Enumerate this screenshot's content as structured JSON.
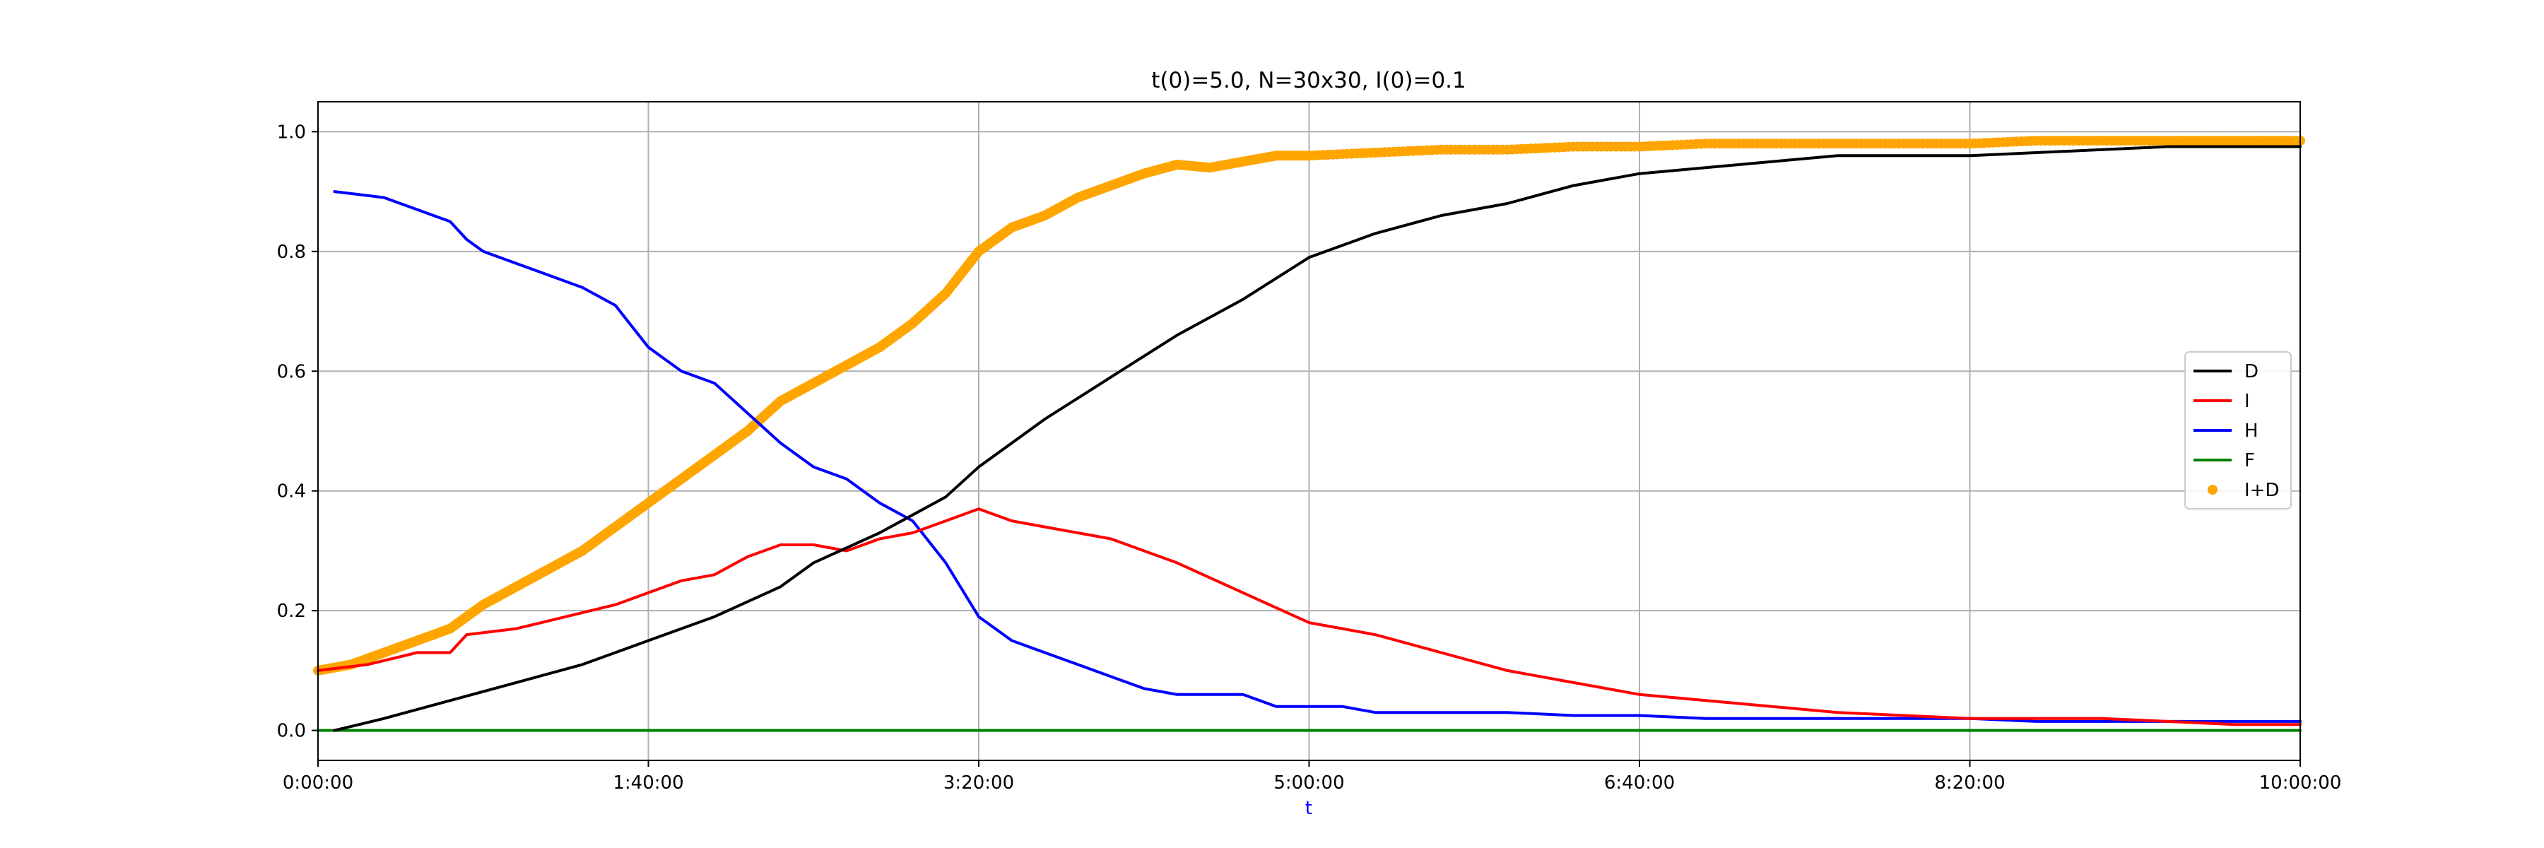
{
  "chart_data": {
    "type": "line",
    "title": "t(0)=5.0, N=30x30, I(0)=0.1",
    "xlabel": "t",
    "xlabel_color": "#0000ff",
    "ylabel": "",
    "x_unit": "seconds",
    "xlim": [
      0,
      36000
    ],
    "ylim": [
      -0.05,
      1.05
    ],
    "grid": true,
    "legend_position": "center-right",
    "x_ticks": [
      {
        "value": 0,
        "label": "0:00:00"
      },
      {
        "value": 6000,
        "label": "1:40:00"
      },
      {
        "value": 12000,
        "label": "3:20:00"
      },
      {
        "value": 18000,
        "label": "5:00:00"
      },
      {
        "value": 24000,
        "label": "6:40:00"
      },
      {
        "value": 30000,
        "label": "8:20:00"
      },
      {
        "value": 36000,
        "label": "10:00:00"
      }
    ],
    "y_ticks": [
      {
        "value": 0.0,
        "label": "0.0"
      },
      {
        "value": 0.2,
        "label": "0.2"
      },
      {
        "value": 0.4,
        "label": "0.4"
      },
      {
        "value": 0.6,
        "label": "0.6"
      },
      {
        "value": 0.8,
        "label": "0.8"
      },
      {
        "value": 1.0,
        "label": "1.0"
      }
    ],
    "series": [
      {
        "name": "D",
        "color": "#000000",
        "style": "line",
        "points": [
          [
            300,
            0.0
          ],
          [
            1200,
            0.02
          ],
          [
            2400,
            0.05
          ],
          [
            3600,
            0.08
          ],
          [
            4800,
            0.11
          ],
          [
            6000,
            0.15
          ],
          [
            7200,
            0.19
          ],
          [
            8400,
            0.24
          ],
          [
            9000,
            0.28
          ],
          [
            10200,
            0.33
          ],
          [
            11400,
            0.39
          ],
          [
            12000,
            0.44
          ],
          [
            13200,
            0.52
          ],
          [
            14400,
            0.59
          ],
          [
            15600,
            0.66
          ],
          [
            16800,
            0.72
          ],
          [
            18000,
            0.79
          ],
          [
            19200,
            0.83
          ],
          [
            20400,
            0.86
          ],
          [
            21600,
            0.88
          ],
          [
            22800,
            0.91
          ],
          [
            24000,
            0.93
          ],
          [
            25200,
            0.94
          ],
          [
            26400,
            0.95
          ],
          [
            27600,
            0.96
          ],
          [
            28800,
            0.96
          ],
          [
            30000,
            0.96
          ],
          [
            31200,
            0.965
          ],
          [
            32400,
            0.97
          ],
          [
            33600,
            0.975
          ],
          [
            34800,
            0.975
          ],
          [
            36000,
            0.975
          ]
        ]
      },
      {
        "name": "I",
        "color": "#ff0000",
        "style": "line",
        "points": [
          [
            0,
            0.1
          ],
          [
            900,
            0.11
          ],
          [
            1800,
            0.13
          ],
          [
            2400,
            0.13
          ],
          [
            2700,
            0.16
          ],
          [
            3600,
            0.17
          ],
          [
            4500,
            0.19
          ],
          [
            5400,
            0.21
          ],
          [
            6000,
            0.23
          ],
          [
            6600,
            0.25
          ],
          [
            7200,
            0.26
          ],
          [
            7800,
            0.29
          ],
          [
            8400,
            0.31
          ],
          [
            9000,
            0.31
          ],
          [
            9600,
            0.3
          ],
          [
            10200,
            0.32
          ],
          [
            10800,
            0.33
          ],
          [
            11400,
            0.35
          ],
          [
            12000,
            0.37
          ],
          [
            12600,
            0.35
          ],
          [
            13200,
            0.34
          ],
          [
            14400,
            0.32
          ],
          [
            15600,
            0.28
          ],
          [
            16800,
            0.23
          ],
          [
            18000,
            0.18
          ],
          [
            19200,
            0.16
          ],
          [
            20400,
            0.13
          ],
          [
            21600,
            0.1
          ],
          [
            22800,
            0.08
          ],
          [
            24000,
            0.06
          ],
          [
            25200,
            0.05
          ],
          [
            26400,
            0.04
          ],
          [
            27600,
            0.03
          ],
          [
            28800,
            0.025
          ],
          [
            30000,
            0.02
          ],
          [
            31200,
            0.02
          ],
          [
            32400,
            0.02
          ],
          [
            33600,
            0.015
          ],
          [
            34800,
            0.01
          ],
          [
            36000,
            0.01
          ]
        ]
      },
      {
        "name": "H",
        "color": "#0000ff",
        "style": "line",
        "points": [
          [
            300,
            0.9
          ],
          [
            1200,
            0.89
          ],
          [
            2100,
            0.86
          ],
          [
            2400,
            0.85
          ],
          [
            2700,
            0.82
          ],
          [
            3000,
            0.8
          ],
          [
            3600,
            0.78
          ],
          [
            4200,
            0.76
          ],
          [
            4800,
            0.74
          ],
          [
            5400,
            0.71
          ],
          [
            6000,
            0.64
          ],
          [
            6600,
            0.6
          ],
          [
            7200,
            0.58
          ],
          [
            7800,
            0.53
          ],
          [
            8400,
            0.48
          ],
          [
            9000,
            0.44
          ],
          [
            9600,
            0.42
          ],
          [
            10200,
            0.38
          ],
          [
            10800,
            0.35
          ],
          [
            11400,
            0.28
          ],
          [
            12000,
            0.19
          ],
          [
            12600,
            0.15
          ],
          [
            13200,
            0.13
          ],
          [
            13800,
            0.11
          ],
          [
            14400,
            0.09
          ],
          [
            15000,
            0.07
          ],
          [
            15600,
            0.06
          ],
          [
            16800,
            0.06
          ],
          [
            17400,
            0.04
          ],
          [
            18600,
            0.04
          ],
          [
            19200,
            0.03
          ],
          [
            20400,
            0.03
          ],
          [
            21600,
            0.03
          ],
          [
            22800,
            0.025
          ],
          [
            24000,
            0.025
          ],
          [
            25200,
            0.02
          ],
          [
            26400,
            0.02
          ],
          [
            27600,
            0.02
          ],
          [
            28800,
            0.02
          ],
          [
            30000,
            0.02
          ],
          [
            31200,
            0.015
          ],
          [
            32400,
            0.015
          ],
          [
            33600,
            0.015
          ],
          [
            34800,
            0.015
          ],
          [
            36000,
            0.015
          ]
        ]
      },
      {
        "name": "F",
        "color": "#008000",
        "style": "line",
        "points": [
          [
            0,
            0.0
          ],
          [
            36000,
            0.0
          ]
        ]
      },
      {
        "name": "I+D",
        "color": "#ffa500",
        "style": "dots",
        "points": [
          [
            0,
            0.1
          ],
          [
            600,
            0.11
          ],
          [
            1200,
            0.13
          ],
          [
            1800,
            0.15
          ],
          [
            2400,
            0.17
          ],
          [
            3000,
            0.21
          ],
          [
            3600,
            0.24
          ],
          [
            4200,
            0.27
          ],
          [
            4800,
            0.3
          ],
          [
            5400,
            0.34
          ],
          [
            6000,
            0.38
          ],
          [
            6600,
            0.42
          ],
          [
            7200,
            0.46
          ],
          [
            7800,
            0.5
          ],
          [
            8400,
            0.55
          ],
          [
            9000,
            0.58
          ],
          [
            9600,
            0.61
          ],
          [
            10200,
            0.64
          ],
          [
            10800,
            0.68
          ],
          [
            11400,
            0.73
          ],
          [
            12000,
            0.8
          ],
          [
            12600,
            0.84
          ],
          [
            13200,
            0.86
          ],
          [
            13800,
            0.89
          ],
          [
            14400,
            0.91
          ],
          [
            15000,
            0.93
          ],
          [
            15600,
            0.945
          ],
          [
            16200,
            0.94
          ],
          [
            16800,
            0.95
          ],
          [
            17400,
            0.96
          ],
          [
            18000,
            0.96
          ],
          [
            19200,
            0.965
          ],
          [
            20400,
            0.97
          ],
          [
            21600,
            0.97
          ],
          [
            22800,
            0.975
          ],
          [
            24000,
            0.975
          ],
          [
            25200,
            0.98
          ],
          [
            26400,
            0.98
          ],
          [
            27600,
            0.98
          ],
          [
            28800,
            0.98
          ],
          [
            30000,
            0.98
          ],
          [
            31200,
            0.985
          ],
          [
            32400,
            0.985
          ],
          [
            33600,
            0.985
          ],
          [
            34800,
            0.985
          ],
          [
            36000,
            0.985
          ]
        ]
      }
    ]
  }
}
